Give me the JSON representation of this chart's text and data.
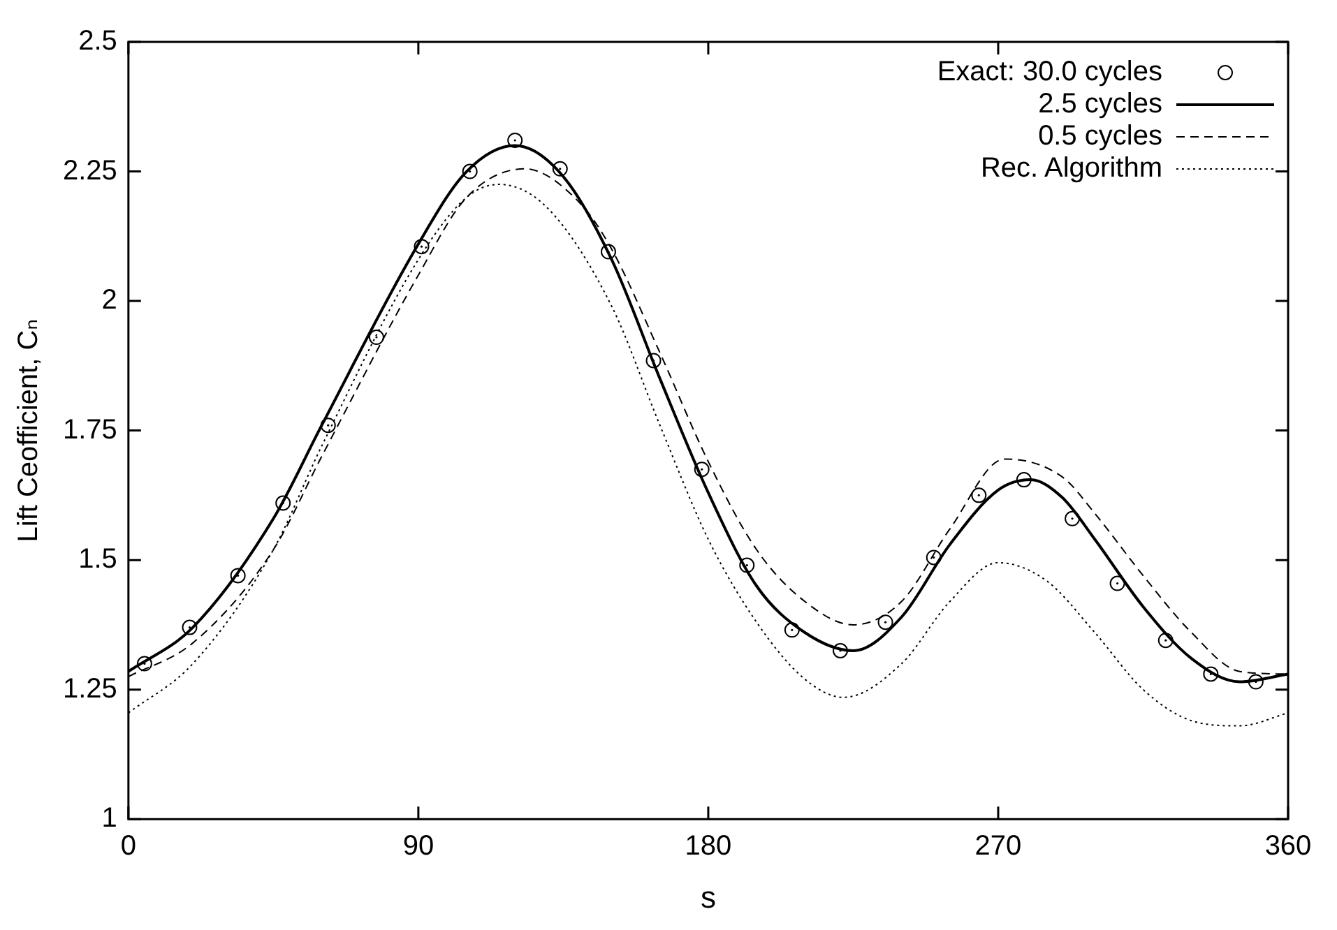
{
  "chart_data": {
    "type": "line",
    "xlabel": "s",
    "ylabel": "Lift Ceofficient, Cₙ",
    "xlim": [
      0,
      360
    ],
    "xticks": [
      0,
      90,
      180,
      270,
      360
    ],
    "ylim": [
      1,
      2.5
    ],
    "yticks": [
      1,
      1.25,
      1.5,
      1.75,
      2,
      2.25,
      2.5
    ],
    "grid": false,
    "legend": "top right",
    "series": [
      {
        "name": "Exact: 30.0 cycles",
        "type": "scatter",
        "marker": "circle",
        "color": "#000000",
        "x": [
          5,
          19,
          34,
          48,
          62,
          77,
          91,
          106,
          120,
          134,
          149,
          163,
          178,
          192,
          206,
          221,
          235,
          250,
          264,
          278,
          293,
          307,
          322,
          336,
          350
        ],
        "values": [
          1.3,
          1.37,
          1.47,
          1.61,
          1.76,
          1.93,
          2.105,
          2.25,
          2.31,
          2.255,
          2.095,
          1.885,
          1.675,
          1.49,
          1.365,
          1.325,
          1.38,
          1.505,
          1.625,
          1.655,
          1.58,
          1.455,
          1.345,
          1.28,
          1.265
        ]
      },
      {
        "name": "2.5 cycles",
        "line_style": "solid",
        "color": "#000000",
        "x": [
          0,
          20,
          45,
          60,
          90,
          105,
          120,
          135,
          150,
          165,
          180,
          195,
          210,
          225,
          240,
          255,
          270,
          280,
          290,
          300,
          315,
          330,
          345,
          360
        ],
        "values": [
          1.285,
          1.37,
          1.58,
          1.76,
          2.11,
          2.25,
          2.3,
          2.24,
          2.08,
          1.85,
          1.63,
          1.45,
          1.36,
          1.325,
          1.39,
          1.53,
          1.635,
          1.655,
          1.62,
          1.54,
          1.41,
          1.31,
          1.265,
          1.28
        ]
      },
      {
        "name": "0.5 cycles",
        "line_style": "dashed",
        "color": "#000000",
        "x": [
          0,
          20,
          45,
          60,
          90,
          105,
          123,
          140,
          150,
          165,
          180,
          195,
          210,
          225,
          240,
          255,
          272,
          290,
          300,
          315,
          330,
          345,
          360
        ],
        "values": [
          1.275,
          1.34,
          1.52,
          1.7,
          2.05,
          2.2,
          2.255,
          2.19,
          2.1,
          1.9,
          1.69,
          1.52,
          1.42,
          1.375,
          1.42,
          1.56,
          1.695,
          1.66,
          1.59,
          1.47,
          1.36,
          1.285,
          1.28
        ]
      },
      {
        "name": "Rec. Algorithm",
        "line_style": "dotted",
        "color": "#000000",
        "x": [
          0,
          20,
          45,
          60,
          90,
          105,
          115,
          130,
          150,
          165,
          180,
          195,
          210,
          222,
          240,
          255,
          270,
          285,
          300,
          315,
          330,
          345,
          360
        ],
        "values": [
          1.205,
          1.3,
          1.52,
          1.72,
          2.08,
          2.2,
          2.225,
          2.18,
          1.99,
          1.76,
          1.54,
          1.38,
          1.27,
          1.235,
          1.3,
          1.42,
          1.495,
          1.46,
          1.36,
          1.25,
          1.19,
          1.18,
          1.205
        ]
      }
    ]
  }
}
